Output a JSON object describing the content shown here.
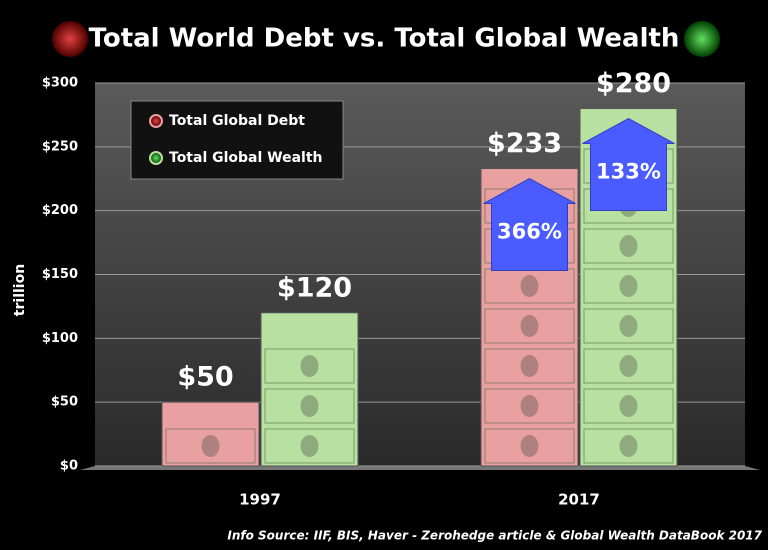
{
  "chart_data": {
    "type": "bar",
    "title": "Total World Debt vs. Total Global Wealth",
    "y_label": "trillion",
    "categories": [
      "1997",
      "2017"
    ],
    "series": [
      {
        "name": "Total Global Debt",
        "color": "#e8a0a0",
        "values": [
          50,
          233
        ],
        "value_labels": [
          "$50",
          "$233"
        ]
      },
      {
        "name": "Total Global Wealth",
        "color": "#b8e0a0",
        "values": [
          120,
          280
        ],
        "value_labels": [
          "$120",
          "$280"
        ]
      }
    ],
    "ylim": [
      0,
      300
    ],
    "yticks": [
      {
        "value": 0,
        "label": "$0"
      },
      {
        "value": 50,
        "label": "$50"
      },
      {
        "value": 100,
        "label": "$100"
      },
      {
        "value": 150,
        "label": "$150"
      },
      {
        "value": 200,
        "label": "$200"
      },
      {
        "value": 250,
        "label": "$250"
      },
      {
        "value": 300,
        "label": "$300"
      }
    ],
    "grid": true,
    "annotations": [
      "366%",
      "133%"
    ],
    "source": "Info Source: IIF, BIS, Haver - Zerohedge article & Global Wealth DataBook 2017"
  }
}
